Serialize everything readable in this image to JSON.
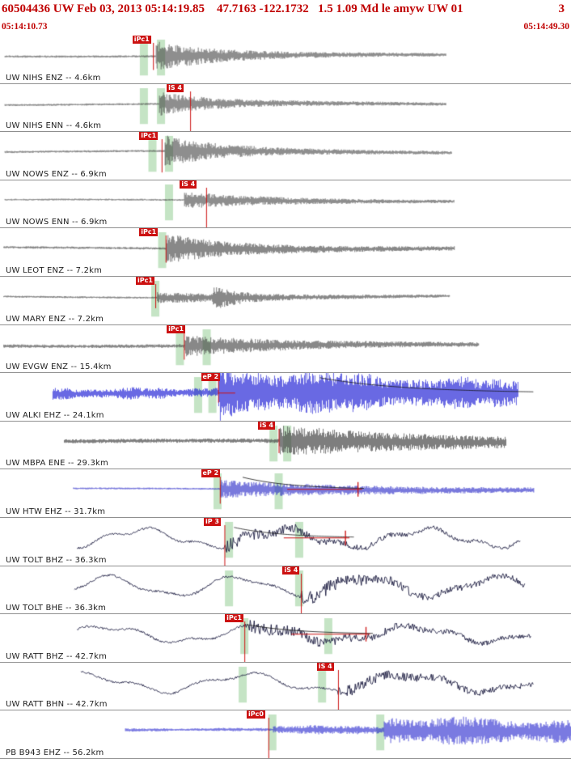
{
  "header": {
    "line1_left": "60504436 UW Feb 03, 2013 05:14:19.85    47.7163 -122.1732   1.5 1.09 Md le amyw UW 01",
    "line1_right": "3",
    "time_left": "05:14:10.73",
    "time_right": "05:14:49.30",
    "accent_color": "#c00000",
    "pick_color": "#cc1111",
    "band_color": "rgba(150,205,150,0.55)"
  },
  "traces": [
    {
      "label": "UW NIHS ENZ -- 4.6km",
      "flag": "iPc1",
      "flag_x": 0.232,
      "color": "#3d3d3d",
      "kind": "hf",
      "x0": 0.008,
      "x1": 0.78,
      "arr": 0.272,
      "noise": 1.4,
      "amp": 14,
      "tau": 70,
      "coda": 4,
      "ctau": 300,
      "pick_x": 0.268,
      "pick_len": 0.72,
      "bands": [
        0.252,
        0.282
      ],
      "seed": 1
    },
    {
      "label": "UW NIHS ENN -- 4.6km",
      "flag": "iS 4",
      "flag_x": 0.292,
      "color": "#3d3d3d",
      "kind": "hf",
      "x0": 0.008,
      "x1": 0.78,
      "arr": 0.278,
      "noise": 1.3,
      "amp": 11,
      "tau": 60,
      "coda": 3.5,
      "ctau": 320,
      "pick_x": 0.333,
      "pick_len": 1.2,
      "bands": [
        0.252,
        0.282
      ],
      "seed": 2
    },
    {
      "label": "UW NOWS ENZ -- 6.9km",
      "flag": "iPc1",
      "flag_x": 0.244,
      "color": "#3d3d3d",
      "kind": "hf",
      "x0": 0.008,
      "x1": 0.79,
      "arr": 0.288,
      "noise": 1.4,
      "amp": 15,
      "tau": 65,
      "coda": 4,
      "ctau": 300,
      "pick_x": 0.283,
      "pick_len": 0.85,
      "bands": [
        0.267,
        0.296
      ],
      "seed": 3
    },
    {
      "label": "UW NOWS ENN -- 6.9km",
      "flag": "iS 4",
      "flag_x": 0.315,
      "color": "#3d3d3d",
      "kind": "hf",
      "x0": 0.008,
      "x1": 0.795,
      "arr": 0.322,
      "noise": 1.1,
      "amp": 7.5,
      "tau": 90,
      "coda": 2.8,
      "ctau": 350,
      "pick_x": 0.361,
      "pick_len": 1.2,
      "bands": [
        0.296
      ],
      "seed": 4
    },
    {
      "label": "UW LEOT ENZ -- 7.2km",
      "flag": "iPc1",
      "flag_x": 0.244,
      "color": "#3d3d3d",
      "kind": "hf",
      "x0": 0.006,
      "x1": 0.795,
      "arr": 0.29,
      "noise": 1.5,
      "amp": 14,
      "tau": 60,
      "coda": 5.5,
      "ctau": 330,
      "pick_x": 0.29,
      "pick_len": 0.72,
      "bands": [
        0.284
      ],
      "seed": 5
    },
    {
      "label": "UW MARY ENZ -- 7.2km",
      "flag": "iPc1",
      "flag_x": 0.238,
      "color": "#3d3d3d",
      "kind": "hf",
      "x0": 0.006,
      "x1": 0.787,
      "arr": 0.275,
      "noise": 1.2,
      "amp": 3.5,
      "tau": 150,
      "coda": 2.5,
      "ctau": 320,
      "arr2": 0.372,
      "amp2": 13,
      "tau2": 25,
      "pick_x": 0.272,
      "pick_len": 0.66,
      "bands": [
        0.272
      ],
      "seed": 6
    },
    {
      "label": "UW EVGW ENZ -- 15.4km",
      "flag": "iPc1",
      "flag_x": 0.292,
      "color": "#3d3d3d",
      "kind": "hf",
      "x0": 0.006,
      "x1": 0.838,
      "arr": 0.322,
      "noise": 2.2,
      "amp": 9,
      "tau": 110,
      "coda": 4,
      "ctau": 420,
      "pick_x": 0.322,
      "pick_len": 0.72,
      "bands": [
        0.315,
        0.362
      ],
      "seed": 7
    },
    {
      "label": "UW ALKI EHZ -- 24.1km",
      "flag": "eP 2",
      "flag_x": 0.352,
      "color": "#2020d6",
      "kind": "hf",
      "x0": 0.092,
      "x1": 0.907,
      "arr": 0.382,
      "noise": 4.5,
      "mod": 1,
      "amp": 17,
      "tau": 420,
      "coda": 8,
      "ctau": 900,
      "pick_x": 0.382,
      "pick_len": 0.62,
      "bands": [
        0.347,
        0.372
      ],
      "decay": {
        "x0": 0.56,
        "x1": 0.935,
        "h": 19
      },
      "seg": {
        "x0": 0.382,
        "x1": 0.412
      },
      "seed": 8
    },
    {
      "label": "UW MBPA ENE -- 29.3km",
      "flag": "iS 4",
      "flag_x": 0.452,
      "color": "#3d3d3d",
      "kind": "hf",
      "x0": 0.112,
      "x1": 0.886,
      "arr": 0.488,
      "noise": 2.6,
      "amp": 13,
      "tau": 180,
      "coda": 6,
      "ctau": 650,
      "pick_x": 0.488,
      "pick_len": 0.66,
      "bands": [
        0.479,
        0.503
      ],
      "seed": 9
    },
    {
      "label": "UW HTW EHZ -- 31.7km",
      "flag": "eP 2",
      "flag_x": 0.352,
      "color": "#1b1bc4",
      "kind": "hf",
      "x0": 0.128,
      "x1": 0.934,
      "arr": 0.385,
      "noise": 1.1,
      "amp": 7,
      "tau": 150,
      "coda": 3.5,
      "ctau": 650,
      "pick_x": 0.385,
      "pick_len": 0.72,
      "bands": [
        0.381,
        0.488
      ],
      "decay": {
        "x0": 0.425,
        "x1": 0.64,
        "h": 15
      },
      "seg": {
        "x0": 0.503,
        "x1": 0.634,
        "spike": 0.627
      },
      "seed": 10
    },
    {
      "label": "UW TOLT BHZ -- 36.3km",
      "flag": "iP 3",
      "flag_x": 0.357,
      "color": "#1b1b40",
      "kind": "lp",
      "x0": 0.135,
      "x1": 0.912,
      "a1": 10,
      "p1": 175,
      "a2": 3.5,
      "p2": 58,
      "hfbase": 1.3,
      "arr": 0.393,
      "hf": 7,
      "hftau": 150,
      "pick_x": 0.393,
      "pick_len": 1.2,
      "bands": [
        0.401,
        0.524
      ],
      "decay": {
        "x0": 0.41,
        "x1": 0.62,
        "h": 13
      },
      "seg": {
        "x0": 0.497,
        "x1": 0.612,
        "spike": 0.605
      },
      "seed": 11
    },
    {
      "label": "UW TOLT BHE -- 36.3km",
      "flag": "iS 4",
      "flag_x": 0.495,
      "color": "#1b1b40",
      "kind": "lp",
      "x0": 0.13,
      "x1": 0.919,
      "a1": 11,
      "p1": 160,
      "a2": 3,
      "p2": 70,
      "hfbase": 1.4,
      "arr": 0.527,
      "hf": 8,
      "hftau": 180,
      "pick_x": 0.527,
      "pick_len": 1.2,
      "bands": [
        0.401,
        0.524
      ],
      "seed": 12
    },
    {
      "label": "UW RATT BHZ -- 42.7km",
      "flag": "iPc1",
      "flag_x": 0.394,
      "color": "#1b1b40",
      "kind": "lp",
      "x0": 0.135,
      "x1": 0.93,
      "a1": 9,
      "p1": 190,
      "a2": 3,
      "p2": 65,
      "hfbase": 1.3,
      "arr": 0.428,
      "hf": 7,
      "hftau": 200,
      "pick_x": 0.428,
      "pick_len": 1.2,
      "bands": [
        0.428,
        0.575
      ],
      "decay": {
        "x0": 0.432,
        "x1": 0.655,
        "h": 12
      },
      "seg": {
        "x0": 0.51,
        "x1": 0.648,
        "spike": 0.641
      },
      "seed": 13
    },
    {
      "label": "UW RATT BHN -- 42.7km",
      "flag": "iS 4",
      "flag_x": 0.555,
      "color": "#1b1b40",
      "kind": "lp",
      "x0": 0.142,
      "x1": 0.934,
      "a1": 10,
      "p1": 200,
      "a2": 3.5,
      "p2": 75,
      "hfbase": 1.3,
      "arr": 0.592,
      "hf": 6,
      "hftau": 220,
      "pick_x": 0.592,
      "pick_len": 1.2,
      "bands": [
        0.425,
        0.564
      ],
      "seed": 14
    },
    {
      "label": "PB B943 EHZ -- 56.2km",
      "flag": "iPc0",
      "flag_x": 0.432,
      "color": "#1c1ccc",
      "kind": "hf",
      "x0": 0.219,
      "x1": 1.0,
      "arr": 0.477,
      "noise": 1.3,
      "amp": 2.5,
      "tau": 400,
      "coda": 1.5,
      "ctau": 400,
      "arr2": 0.672,
      "amp2": 13,
      "tau2": 900,
      "mod": 1,
      "pick_x": 0.47,
      "pick_len": 1.2,
      "bands": [
        0.477,
        0.666
      ],
      "seed": 15
    }
  ]
}
